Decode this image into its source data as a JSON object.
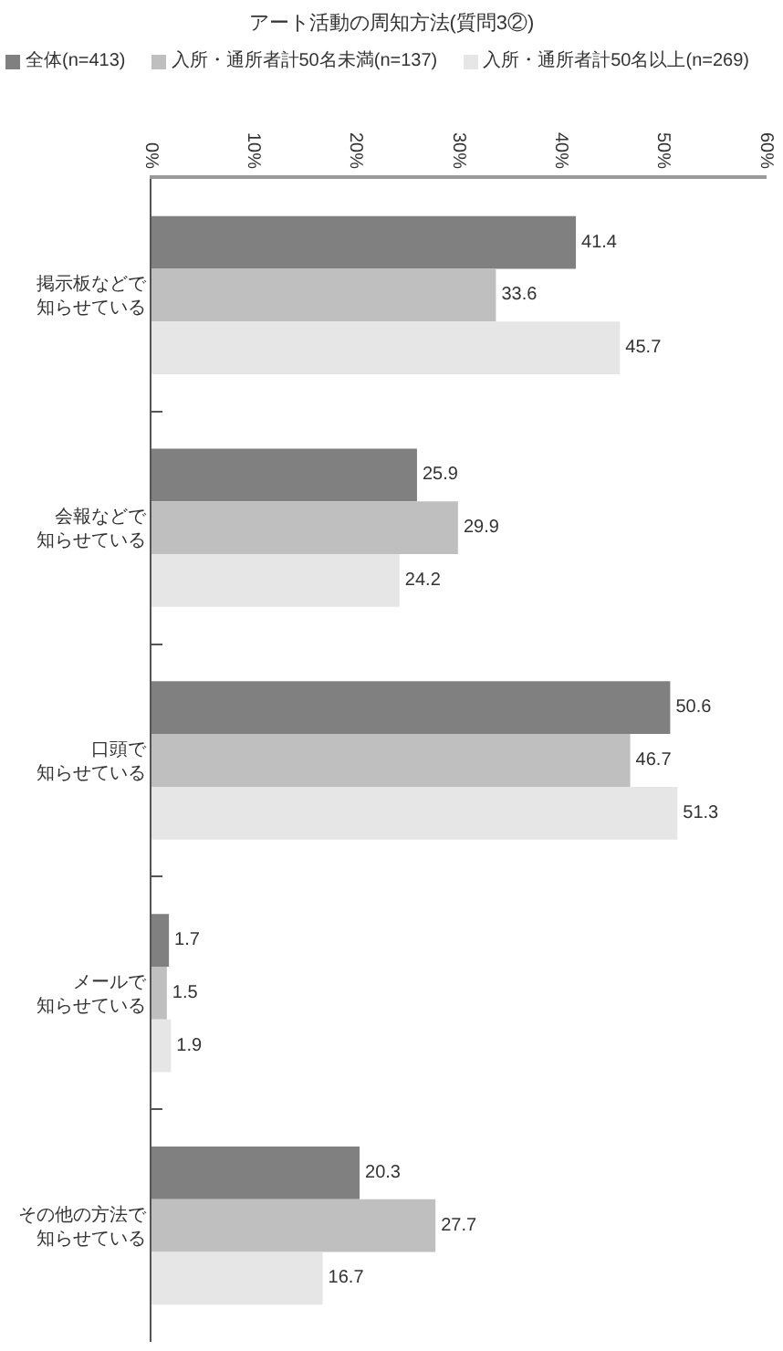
{
  "chart_data": {
    "type": "bar",
    "title": "アート活動の周知方法(質問3②)",
    "orientation": "horizontal",
    "categories": [
      "掲示板などで知らせている",
      "会報などで知らせている",
      "口頭で知らせている",
      "メールで知らせている",
      "その他の方法で知らせている"
    ],
    "series": [
      {
        "name": "全体(n=413)",
        "color": "#808080",
        "values": [
          41.4,
          25.9,
          50.6,
          1.7,
          20.3
        ]
      },
      {
        "name": "入所・通所者計50名未満(n=137)",
        "color": "#bfbfbf",
        "values": [
          33.6,
          29.9,
          46.7,
          1.5,
          27.7
        ]
      },
      {
        "name": "入所・通所者計50名以上(n=269)",
        "color": "#e6e6e6",
        "values": [
          45.7,
          24.2,
          51.3,
          1.9,
          16.7
        ]
      }
    ],
    "xlim": [
      0,
      60
    ],
    "xticks": [
      {
        "value": 0,
        "label": "0%"
      },
      {
        "value": 10,
        "label": "10%"
      },
      {
        "value": 20,
        "label": "20%"
      },
      {
        "value": 30,
        "label": "30%"
      },
      {
        "value": 40,
        "label": "40%"
      },
      {
        "value": 50,
        "label": "50%"
      },
      {
        "value": 60,
        "label": "60%"
      }
    ],
    "data_labels": true,
    "legend": "top",
    "grid": false
  }
}
